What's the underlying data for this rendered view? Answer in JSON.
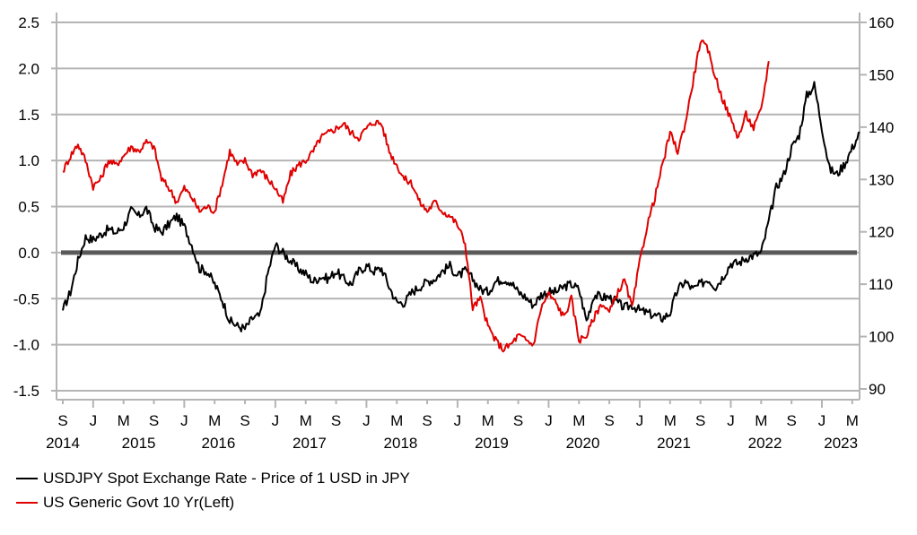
{
  "chart_data": {
    "type": "line",
    "title": "",
    "xlabel": "",
    "ylabel_left": "",
    "ylabel_right": "",
    "x_start": "2014-09",
    "x_frequency": "monthly",
    "x_month_ticks": [
      "S",
      "J",
      "M",
      "S",
      "J",
      "M",
      "S",
      "J",
      "M",
      "S",
      "J",
      "M",
      "S",
      "J",
      "M",
      "S",
      "J",
      "M",
      "S",
      "J",
      "M",
      "S",
      "J",
      "M",
      "S",
      "J",
      "M"
    ],
    "x_year_labels": [
      "2014",
      "2015",
      "2016",
      "2017",
      "2018",
      "2019",
      "2020",
      "2021",
      "2022",
      "2023"
    ],
    "y_left": {
      "min": -1.5,
      "max": 2.5,
      "ticks": [
        "2.5",
        "2.0",
        "1.5",
        "1.0",
        "0.5",
        "0.0",
        "-0.5",
        "-1.0",
        "-1.5"
      ]
    },
    "y_right": {
      "min": 90,
      "max": 160,
      "ticks": [
        "160",
        "150",
        "140",
        "130",
        "120",
        "110",
        "100",
        "90"
      ]
    },
    "grid": true,
    "zero_line": {
      "axis": "left",
      "value": 0.0,
      "color": "#5a5a5a"
    },
    "legend_position": "bottom-left",
    "series": [
      {
        "name": "USDJPY Spot Exchange Rate - Price of 1 USD in JPY",
        "axis": "right",
        "color": "#000000",
        "values": [
          105.0,
          108.5,
          114.5,
          119.0,
          118.5,
          119.5,
          120.5,
          119.8,
          121.0,
          124.0,
          123.0,
          124.5,
          121.0,
          119.9,
          121.5,
          123.0,
          121.0,
          117.5,
          113.0,
          112.5,
          110.0,
          107.0,
          103.0,
          102.0,
          101.5,
          103.5,
          104.0,
          112.0,
          117.5,
          116.0,
          114.5,
          113.0,
          112.0,
          110.5,
          111.5,
          111.0,
          112.5,
          111.0,
          110.0,
          112.5,
          113.5,
          112.5,
          113.0,
          109.5,
          106.5,
          106.5,
          108.5,
          109.5,
          110.5,
          111.0,
          112.5,
          113.5,
          111.5,
          112.5,
          111.0,
          109.0,
          108.5,
          110.5,
          111.0,
          110.5,
          108.5,
          107.5,
          106.0,
          108.0,
          108.5,
          108.5,
          109.5,
          110.0,
          109.0,
          103.0,
          108.0,
          107.5,
          107.5,
          106.5,
          105.5,
          106.0,
          105.0,
          104.5,
          104.0,
          103.5,
          104.5,
          109.0,
          110.5,
          109.0,
          110.0,
          111.0,
          109.5,
          111.5,
          114.0,
          114.0,
          115.0,
          115.5,
          116.0,
          122.0,
          128.5,
          131.0,
          136.0,
          138.5,
          146.0,
          148.0,
          140.0,
          132.0,
          131.0,
          133.0,
          136.0,
          139.0
        ],
        "legend": "USDJPY Spot Exchange Rate - Price of 1 USD in JPY"
      },
      {
        "name": "US Generic Govt 10 Yr(Left)",
        "axis": "left",
        "color": "#e00000",
        "values": [
          0.88,
          1.05,
          1.18,
          1.0,
          0.72,
          0.8,
          1.0,
          0.95,
          1.05,
          1.15,
          1.1,
          1.2,
          1.15,
          0.8,
          0.7,
          0.55,
          0.7,
          0.6,
          0.45,
          0.5,
          0.45,
          0.75,
          1.1,
          0.95,
          1.0,
          0.85,
          0.9,
          0.8,
          0.7,
          0.55,
          0.85,
          0.95,
          1.0,
          1.1,
          1.25,
          1.3,
          1.35,
          1.4,
          1.3,
          1.25,
          1.35,
          1.42,
          1.4,
          1.1,
          0.95,
          0.8,
          0.75,
          0.55,
          0.45,
          0.55,
          0.45,
          0.4,
          0.3,
          0.1,
          -0.6,
          -0.5,
          -0.8,
          -0.95,
          -1.05,
          -1.0,
          -0.9,
          -0.95,
          -1.0,
          -0.6,
          -0.45,
          -0.55,
          -0.7,
          -0.5,
          -0.95,
          -0.9,
          -0.7,
          -0.55,
          -0.65,
          -0.45,
          -0.3,
          -0.6,
          -0.1,
          0.3,
          0.6,
          0.95,
          1.3,
          1.1,
          1.4,
          1.85,
          2.3,
          2.2,
          1.9,
          1.65,
          1.45,
          1.25,
          1.5,
          1.35,
          1.55,
          2.08
        ]
      }
    ]
  },
  "legend": {
    "items": [
      {
        "label": "USDJPY Spot Exchange Rate - Price of 1 USD in JPY",
        "color": "#000000"
      },
      {
        "label": "US Generic Govt 10 Yr(Left)",
        "color": "#e00000"
      }
    ]
  }
}
